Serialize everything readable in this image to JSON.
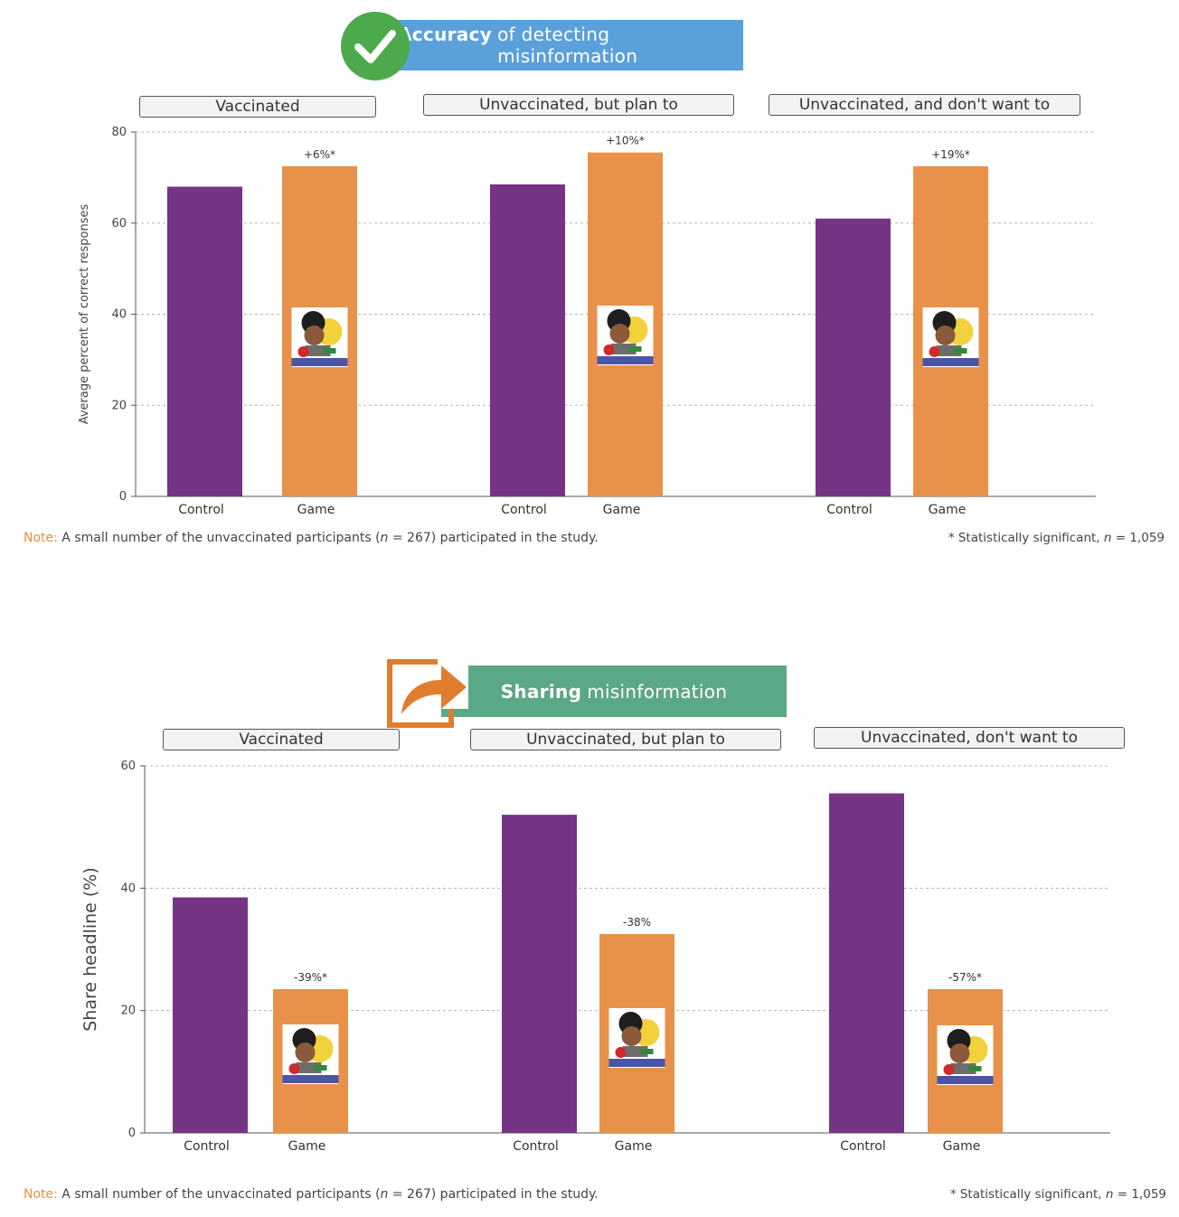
{
  "charts": [
    {
      "banner": {
        "bold": "Accuracy",
        "rest": "of detecting misinformation",
        "color": "#5aa0db",
        "icon": "checkmark-circle-icon",
        "icon_color": "#4caa4c"
      },
      "groups": [
        "Vaccinated",
        "Unvaccinated, but plan to",
        "Unvaccinated, and don't want to"
      ],
      "note": {
        "label": "Note:",
        "text_before": " A small number of the unvaccinated participants (",
        "n_symbol": "n",
        "text_after": " = 267) participated in the study."
      },
      "significance": {
        "prefix": "* Statistically significant, ",
        "n_symbol": "n",
        "suffix": " = 1,059"
      }
    },
    {
      "banner": {
        "bold": "Sharing",
        "rest": "misinformation",
        "color": "#5aa885",
        "icon": "share-arrow-icon",
        "icon_color": "#e07d2e"
      },
      "groups": [
        "Vaccinated",
        "Unvaccinated, but plan to",
        "Unvaccinated, don't want to"
      ],
      "note": {
        "label": "Note:",
        "text_before": " A small number of the unvaccinated participants (",
        "n_symbol": "n",
        "text_after": " = 267) participated in the study."
      },
      "significance": {
        "prefix": "* Statistically significant, ",
        "n_symbol": "n",
        "suffix": " = 1,059"
      }
    }
  ],
  "chart_data": [
    {
      "type": "bar",
      "ylabel": "Average percent of correct responses",
      "ylim": [
        0,
        80
      ],
      "yticks": [
        0,
        20,
        40,
        60,
        80
      ],
      "grid": true,
      "categories": [
        "Control",
        "Game"
      ],
      "colors": {
        "Control": "#753484",
        "Game": "#e8914a"
      },
      "groups": [
        {
          "name": "Vaccinated",
          "values": [
            68,
            72.5
          ],
          "annotation": "+6%*"
        },
        {
          "name": "Unvaccinated, but plan to",
          "values": [
            68.5,
            75.5
          ],
          "annotation": "+10%*"
        },
        {
          "name": "Unvaccinated, and don't want to",
          "values": [
            61,
            72.5
          ],
          "annotation": "+19%*"
        }
      ]
    },
    {
      "type": "bar",
      "ylabel": "Share headline (%)",
      "ylim": [
        0,
        60
      ],
      "yticks": [
        0,
        20,
        40,
        60
      ],
      "grid": true,
      "categories": [
        "Control",
        "Game"
      ],
      "colors": {
        "Control": "#753484",
        "Game": "#e8914a"
      },
      "groups": [
        {
          "name": "Vaccinated",
          "values": [
            38.5,
            23.5
          ],
          "annotation": "-39%*"
        },
        {
          "name": "Unvaccinated, but plan to",
          "values": [
            52,
            32.5
          ],
          "annotation": "-38%"
        },
        {
          "name": "Unvaccinated, don't want to",
          "values": [
            55.5,
            23.5
          ],
          "annotation": "-57%*"
        }
      ]
    }
  ]
}
